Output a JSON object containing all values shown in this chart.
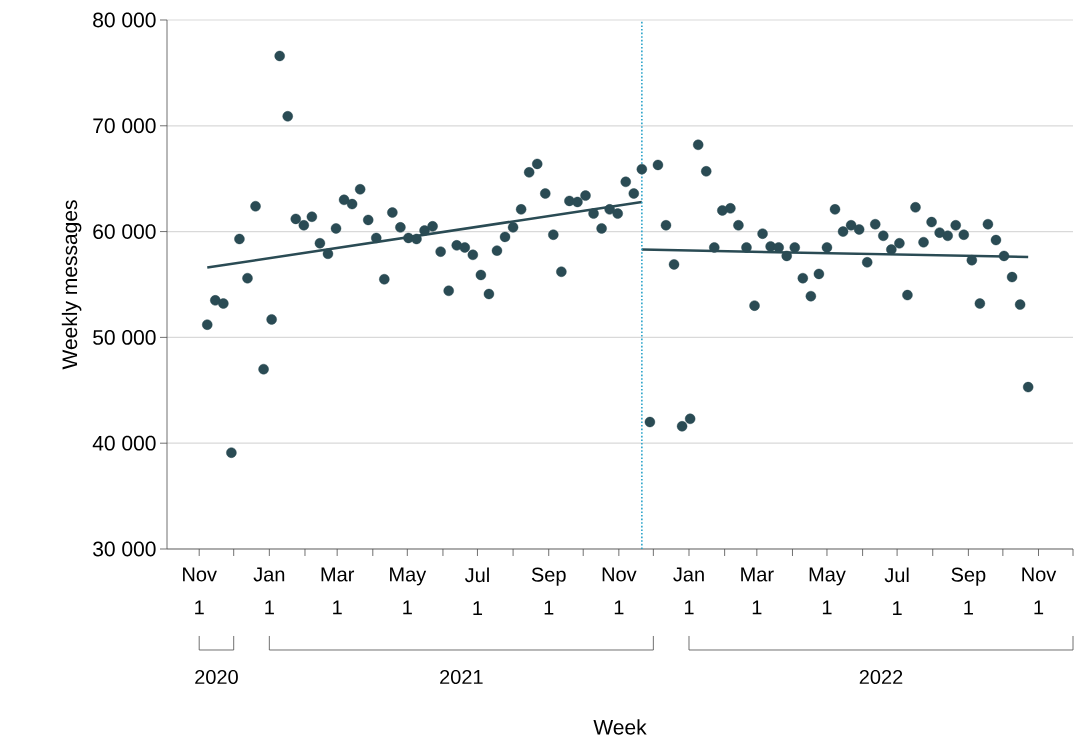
{
  "chart_data": {
    "type": "scatter",
    "xlabel": "Week",
    "ylabel": "Weekly messages",
    "xlim": [
      "2020-10-04",
      "2022-12-01"
    ],
    "ylim": [
      30000,
      80000
    ],
    "xticks": [
      {
        "value": "2020-11-01",
        "label": "Nov 1"
      },
      {
        "value": "2020-12-01",
        "label": null
      },
      {
        "value": "2021-01-01",
        "label": "Jan 1"
      },
      {
        "value": "2021-02-01",
        "label": null
      },
      {
        "value": "2021-03-01",
        "label": "Mar 1"
      },
      {
        "value": "2021-04-01",
        "label": null
      },
      {
        "value": "2021-05-01",
        "label": "May 1"
      },
      {
        "value": "2021-06-01",
        "label": null
      },
      {
        "value": "2021-07-01",
        "label": "Jul 1"
      },
      {
        "value": "2021-08-01",
        "label": null
      },
      {
        "value": "2021-09-01",
        "label": "Sep 1"
      },
      {
        "value": "2021-10-01",
        "label": null
      },
      {
        "value": "2021-11-01",
        "label": "Nov 1"
      },
      {
        "value": "2021-12-01",
        "label": null
      },
      {
        "value": "2022-01-01",
        "label": "Jan 1"
      },
      {
        "value": "2022-02-01",
        "label": null
      },
      {
        "value": "2022-03-01",
        "label": "Mar 1"
      },
      {
        "value": "2022-04-01",
        "label": null
      },
      {
        "value": "2022-05-01",
        "label": "May 1"
      },
      {
        "value": "2022-06-01",
        "label": null
      },
      {
        "value": "2022-07-01",
        "label": "Jul 1"
      },
      {
        "value": "2022-08-01",
        "label": null
      },
      {
        "value": "2022-09-01",
        "label": "Sep 1"
      },
      {
        "value": "2022-10-01",
        "label": null
      },
      {
        "value": "2022-11-01",
        "label": "Nov 1"
      },
      {
        "value": "2022-12-01",
        "label": null
      }
    ],
    "yticks": [
      {
        "value": 30000,
        "label": "30 000"
      },
      {
        "value": 40000,
        "label": "40 000"
      },
      {
        "value": 50000,
        "label": "50 000"
      },
      {
        "value": 60000,
        "label": "60 000"
      },
      {
        "value": 70000,
        "label": "70 000"
      },
      {
        "value": 80000,
        "label": "80 000"
      }
    ],
    "grid": "y",
    "annotations": [
      "2020",
      "2021",
      "2022"
    ],
    "ref_lines": [
      {
        "axis": "x",
        "value": "2021-11-21",
        "color": "#2aa3c9",
        "line_style": "dotted"
      }
    ],
    "series": [
      {
        "marker": "circle",
        "color": "#2a4b54",
        "x": [
          "2020-11-08",
          "2020-11-15",
          "2020-11-22",
          "2020-11-29",
          "2020-12-06",
          "2020-12-13",
          "2020-12-20",
          "2020-12-27",
          "2021-01-03",
          "2021-01-10",
          "2021-01-17",
          "2021-01-24",
          "2021-01-31",
          "2021-02-07",
          "2021-02-14",
          "2021-02-21",
          "2021-02-28",
          "2021-03-07",
          "2021-03-14",
          "2021-03-21",
          "2021-03-28",
          "2021-04-04",
          "2021-04-11",
          "2021-04-18",
          "2021-04-25",
          "2021-05-02",
          "2021-05-09",
          "2021-05-16",
          "2021-05-23",
          "2021-05-30",
          "2021-06-06",
          "2021-06-13",
          "2021-06-20",
          "2021-06-27",
          "2021-07-04",
          "2021-07-11",
          "2021-07-18",
          "2021-07-25",
          "2021-08-01",
          "2021-08-08",
          "2021-08-15",
          "2021-08-22",
          "2021-08-29",
          "2021-09-05",
          "2021-09-12",
          "2021-09-19",
          "2021-09-26",
          "2021-10-03",
          "2021-10-10",
          "2021-10-17",
          "2021-10-24",
          "2021-10-31",
          "2021-11-07",
          "2021-11-14",
          "2021-11-21",
          "2021-11-28",
          "2021-12-05",
          "2021-12-12",
          "2021-12-19",
          "2021-12-26",
          "2022-01-02",
          "2022-01-09",
          "2022-01-16",
          "2022-01-23",
          "2022-01-30",
          "2022-02-06",
          "2022-02-13",
          "2022-02-20",
          "2022-02-27",
          "2022-03-06",
          "2022-03-13",
          "2022-03-20",
          "2022-03-27",
          "2022-04-03",
          "2022-04-10",
          "2022-04-17",
          "2022-04-24",
          "2022-05-01",
          "2022-05-08",
          "2022-05-15",
          "2022-05-22",
          "2022-05-29",
          "2022-06-05",
          "2022-06-12",
          "2022-06-19",
          "2022-06-26",
          "2022-07-03",
          "2022-07-10",
          "2022-07-17",
          "2022-07-24",
          "2022-07-31",
          "2022-08-07",
          "2022-08-14",
          "2022-08-21",
          "2022-08-28",
          "2022-09-04",
          "2022-09-11",
          "2022-09-18",
          "2022-09-25",
          "2022-10-02",
          "2022-10-09",
          "2022-10-16",
          "2022-10-23"
        ],
        "values": [
          51200,
          53500,
          53200,
          39100,
          59300,
          55600,
          62400,
          47000,
          51700,
          76600,
          70900,
          61200,
          60600,
          61400,
          58900,
          57900,
          60300,
          63000,
          62600,
          64000,
          61100,
          59400,
          55500,
          61800,
          60400,
          59400,
          59300,
          60100,
          60500,
          58100,
          54400,
          58700,
          58500,
          57800,
          55900,
          54100,
          58200,
          59500,
          60400,
          62100,
          65600,
          66400,
          63600,
          59700,
          56200,
          62900,
          62800,
          63400,
          61700,
          60300,
          62100,
          61700,
          64700,
          63600,
          65900,
          42000,
          66300,
          60600,
          56900,
          41600,
          42300,
          68200,
          65700,
          58500,
          62000,
          62200,
          60600,
          58500,
          53000,
          59800,
          58600,
          58500,
          57700,
          58500,
          55600,
          53900,
          56000,
          58500,
          62100,
          60000,
          60600,
          60200,
          57100,
          60700,
          59600,
          58300,
          58900,
          54000,
          62300,
          59000,
          60900,
          59900,
          59600,
          60600,
          59700,
          57300,
          53200,
          60700,
          59200,
          57700,
          55700,
          53100,
          45300
        ]
      },
      {
        "type": "line",
        "marker": "none",
        "color": "#2a4b54",
        "x": [
          "2020-11-08",
          "2021-11-21"
        ],
        "values": [
          56600,
          62800
        ]
      },
      {
        "type": "line",
        "marker": "none",
        "color": "#2a4b54",
        "x": [
          "2021-11-21",
          "2022-10-23"
        ],
        "values": [
          58300,
          57600
        ]
      }
    ]
  }
}
